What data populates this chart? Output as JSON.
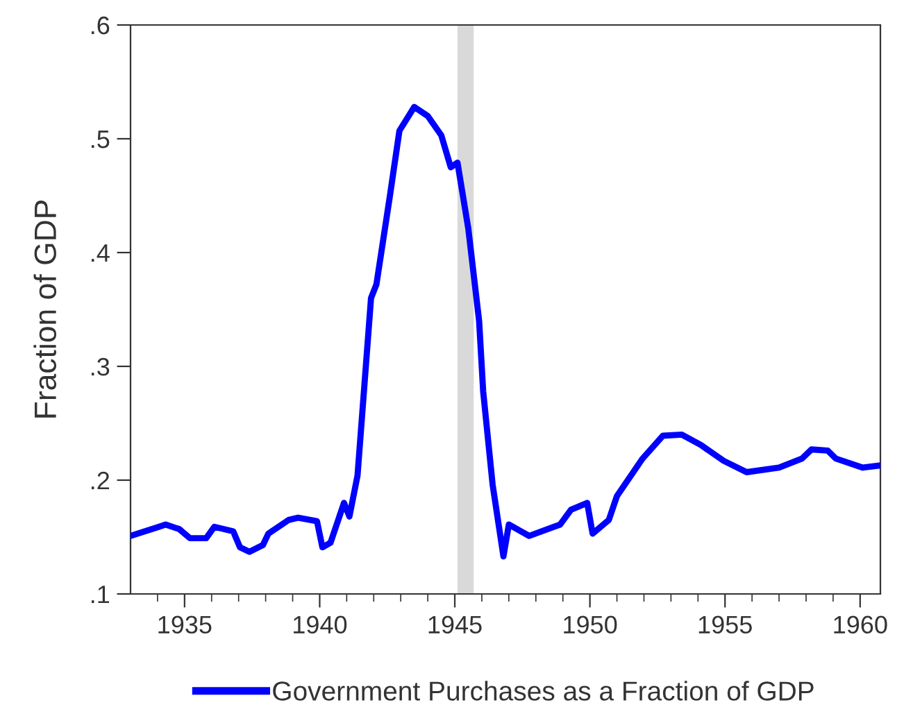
{
  "chart_data": {
    "type": "line",
    "ylabel": "Fraction of GDP",
    "xlim": [
      1933,
      1960.75
    ],
    "ylim": [
      0.1,
      0.6
    ],
    "xticks": [
      {
        "value": 1934,
        "label": null
      },
      {
        "value": 1935,
        "label": "1935"
      },
      {
        "value": 1936,
        "label": null
      },
      {
        "value": 1937,
        "label": null
      },
      {
        "value": 1938,
        "label": null
      },
      {
        "value": 1939,
        "label": null
      },
      {
        "value": 1940,
        "label": "1940"
      },
      {
        "value": 1941,
        "label": null
      },
      {
        "value": 1942,
        "label": null
      },
      {
        "value": 1943,
        "label": null
      },
      {
        "value": 1944,
        "label": null
      },
      {
        "value": 1945,
        "label": "1945"
      },
      {
        "value": 1946,
        "label": null
      },
      {
        "value": 1947,
        "label": null
      },
      {
        "value": 1948,
        "label": null
      },
      {
        "value": 1949,
        "label": null
      },
      {
        "value": 1950,
        "label": "1950"
      },
      {
        "value": 1951,
        "label": null
      },
      {
        "value": 1952,
        "label": null
      },
      {
        "value": 1953,
        "label": null
      },
      {
        "value": 1954,
        "label": null
      },
      {
        "value": 1955,
        "label": "1955"
      },
      {
        "value": 1956,
        "label": null
      },
      {
        "value": 1957,
        "label": null
      },
      {
        "value": 1958,
        "label": null
      },
      {
        "value": 1959,
        "label": null
      },
      {
        "value": 1960,
        "label": "1960"
      }
    ],
    "yticks": [
      {
        "value": 0.1,
        "label": ".1"
      },
      {
        "value": 0.2,
        "label": ".2"
      },
      {
        "value": 0.3,
        "label": ".3"
      },
      {
        "value": 0.4,
        "label": ".4"
      },
      {
        "value": 0.5,
        "label": ".5"
      },
      {
        "value": 0.6,
        "label": ".6"
      }
    ],
    "grid": false,
    "legend": "bottom",
    "marker": "none",
    "line_style": "solid",
    "bands": [
      {
        "axis": "x",
        "from": 1945.1,
        "to": 1945.7,
        "color": "#d9d9d9"
      }
    ],
    "series": [
      {
        "name": "Government Purchases as a Fraction of GDP",
        "color": "#0000ff",
        "x": [
          1933.0,
          1934.05,
          1934.3,
          1934.8,
          1935.2,
          1935.8,
          1936.1,
          1936.8,
          1937.05,
          1937.4,
          1937.9,
          1938.1,
          1938.85,
          1939.2,
          1939.9,
          1940.1,
          1940.4,
          1940.9,
          1941.1,
          1941.4,
          1941.9,
          1942.1,
          1942.6,
          1942.95,
          1943.5,
          1944.0,
          1944.5,
          1944.85,
          1945.1,
          1945.5,
          1945.9,
          1946.05,
          1946.4,
          1946.8,
          1947.0,
          1947.75,
          1948.9,
          1949.3,
          1949.9,
          1950.1,
          1950.7,
          1951.0,
          1951.95,
          1952.7,
          1953.4,
          1954.1,
          1954.95,
          1955.8,
          1957.0,
          1957.85,
          1958.2,
          1958.8,
          1959.1,
          1960.1,
          1960.75
        ],
        "values": [
          0.151,
          0.159,
          0.161,
          0.157,
          0.149,
          0.149,
          0.159,
          0.155,
          0.141,
          0.137,
          0.143,
          0.153,
          0.165,
          0.167,
          0.164,
          0.141,
          0.145,
          0.18,
          0.168,
          0.204,
          0.36,
          0.372,
          0.45,
          0.507,
          0.528,
          0.52,
          0.503,
          0.475,
          0.479,
          0.421,
          0.34,
          0.278,
          0.196,
          0.133,
          0.161,
          0.151,
          0.161,
          0.174,
          0.18,
          0.153,
          0.165,
          0.186,
          0.219,
          0.239,
          0.24,
          0.231,
          0.217,
          0.207,
          0.211,
          0.219,
          0.227,
          0.226,
          0.219,
          0.211,
          0.213
        ]
      }
    ]
  }
}
